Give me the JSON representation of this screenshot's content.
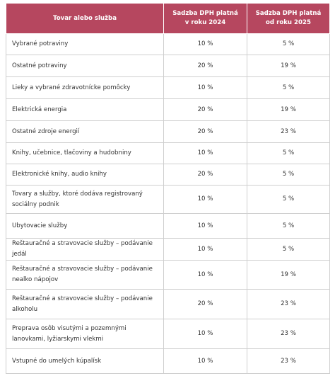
{
  "table": {
    "header": [
      "Tovar alebo služba",
      "Sadzba DPH platná v roku 2024",
      "Sadzba DPH platná od roku 2025"
    ],
    "rows": [
      [
        "Vybrané potraviny",
        "10 %",
        "5 %"
      ],
      [
        "Ostatné potraviny",
        "20 %",
        "19 %"
      ],
      [
        "Lieky a vybrané zdravotnícke pomôcky",
        "10 %",
        "5 %"
      ],
      [
        "Elektrická energia",
        "20 %",
        "19 %"
      ],
      [
        "Ostatné zdroje energií",
        "20 %",
        "23 %"
      ],
      [
        "Knihy, učebnice, tlačoviny a hudobniny",
        "10 %",
        "5 %"
      ],
      [
        "Elektronické knihy, audio knihy",
        "20 %",
        "5 %"
      ],
      [
        "Tovary a služby, ktoré dodáva registrovaný sociálny podnik",
        "10 %",
        "5 %"
      ],
      [
        "Ubytovacie služby",
        "10 %",
        "5 %"
      ],
      [
        "Reštauračné a stravovacie služby – podávanie jedál",
        "10 %",
        "5 %"
      ],
      [
        "Reštauračné a stravovacie služby – podávanie nealko nápojov",
        "10 %",
        "19 %"
      ],
      [
        "Reštauračné a stravovacie služby – podávanie alkoholu",
        "20 %",
        "23 %"
      ],
      [
        "Preprava osôb visutými a pozemnými lanovkami, lyžiarskymi vlekmi",
        "10 %",
        "23 %"
      ],
      [
        "Vstupné do umelých kúpalísk",
        "10 %",
        "23 %"
      ]
    ]
  }
}
